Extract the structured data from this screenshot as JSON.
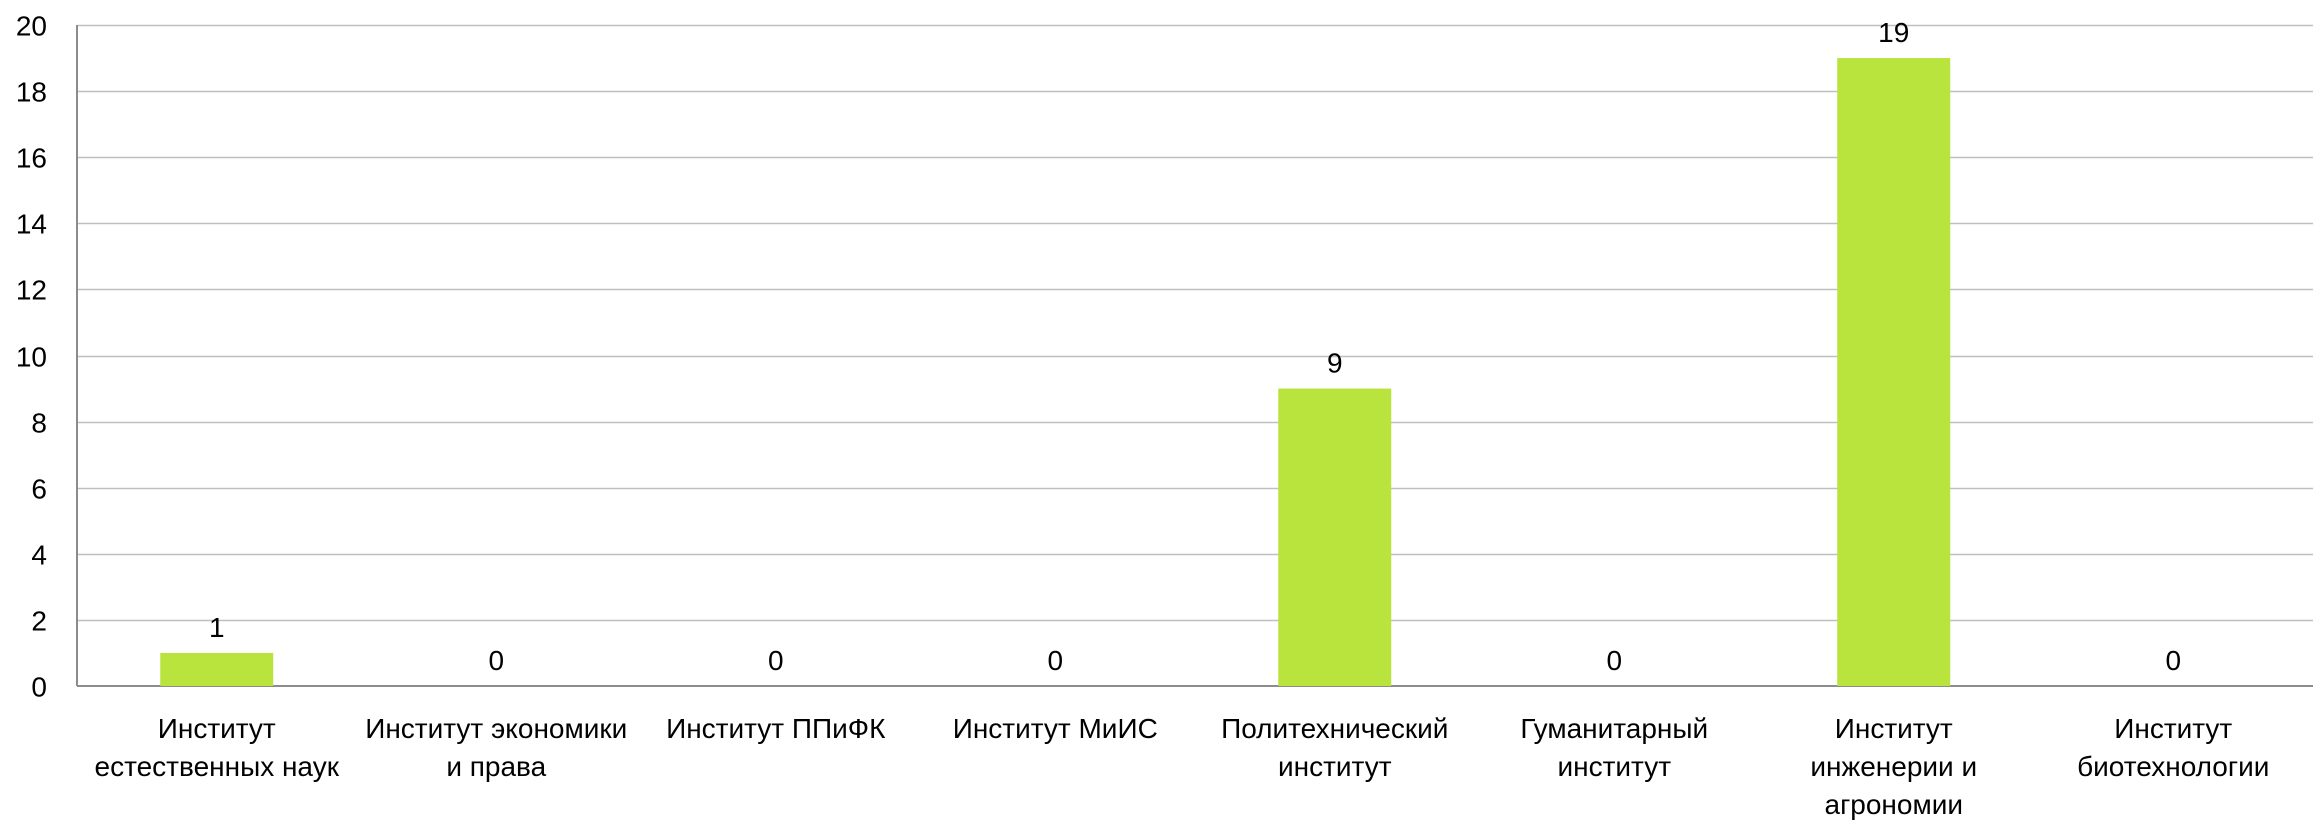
{
  "chart_data": {
    "type": "bar",
    "categories": [
      [
        "Институт",
        "естественных наук"
      ],
      [
        "Институт экономики",
        "и права"
      ],
      [
        "Институт ППиФК"
      ],
      [
        "Институт МиИС"
      ],
      [
        "Политехнический",
        "институт"
      ],
      [
        "Гуманитарный",
        "институт"
      ],
      [
        "Институт",
        "инженерии и",
        "агрономии"
      ],
      [
        "Институт",
        "биотехнологии"
      ]
    ],
    "values": [
      1,
      0,
      0,
      0,
      9,
      0,
      19,
      0
    ],
    "data_labels": [
      "1",
      "0",
      "0",
      "0",
      "9",
      "0",
      "19",
      "0"
    ],
    "title": "",
    "xlabel": "",
    "ylabel": "",
    "ylim": [
      0,
      20
    ],
    "yticks": [
      0,
      2,
      4,
      6,
      8,
      10,
      12,
      14,
      16,
      18,
      20
    ],
    "grid": true,
    "legend": "none",
    "bar_color": "#b9e33d",
    "grid_color": "#bfbfbf",
    "axis_color": "#8c8c8c"
  }
}
